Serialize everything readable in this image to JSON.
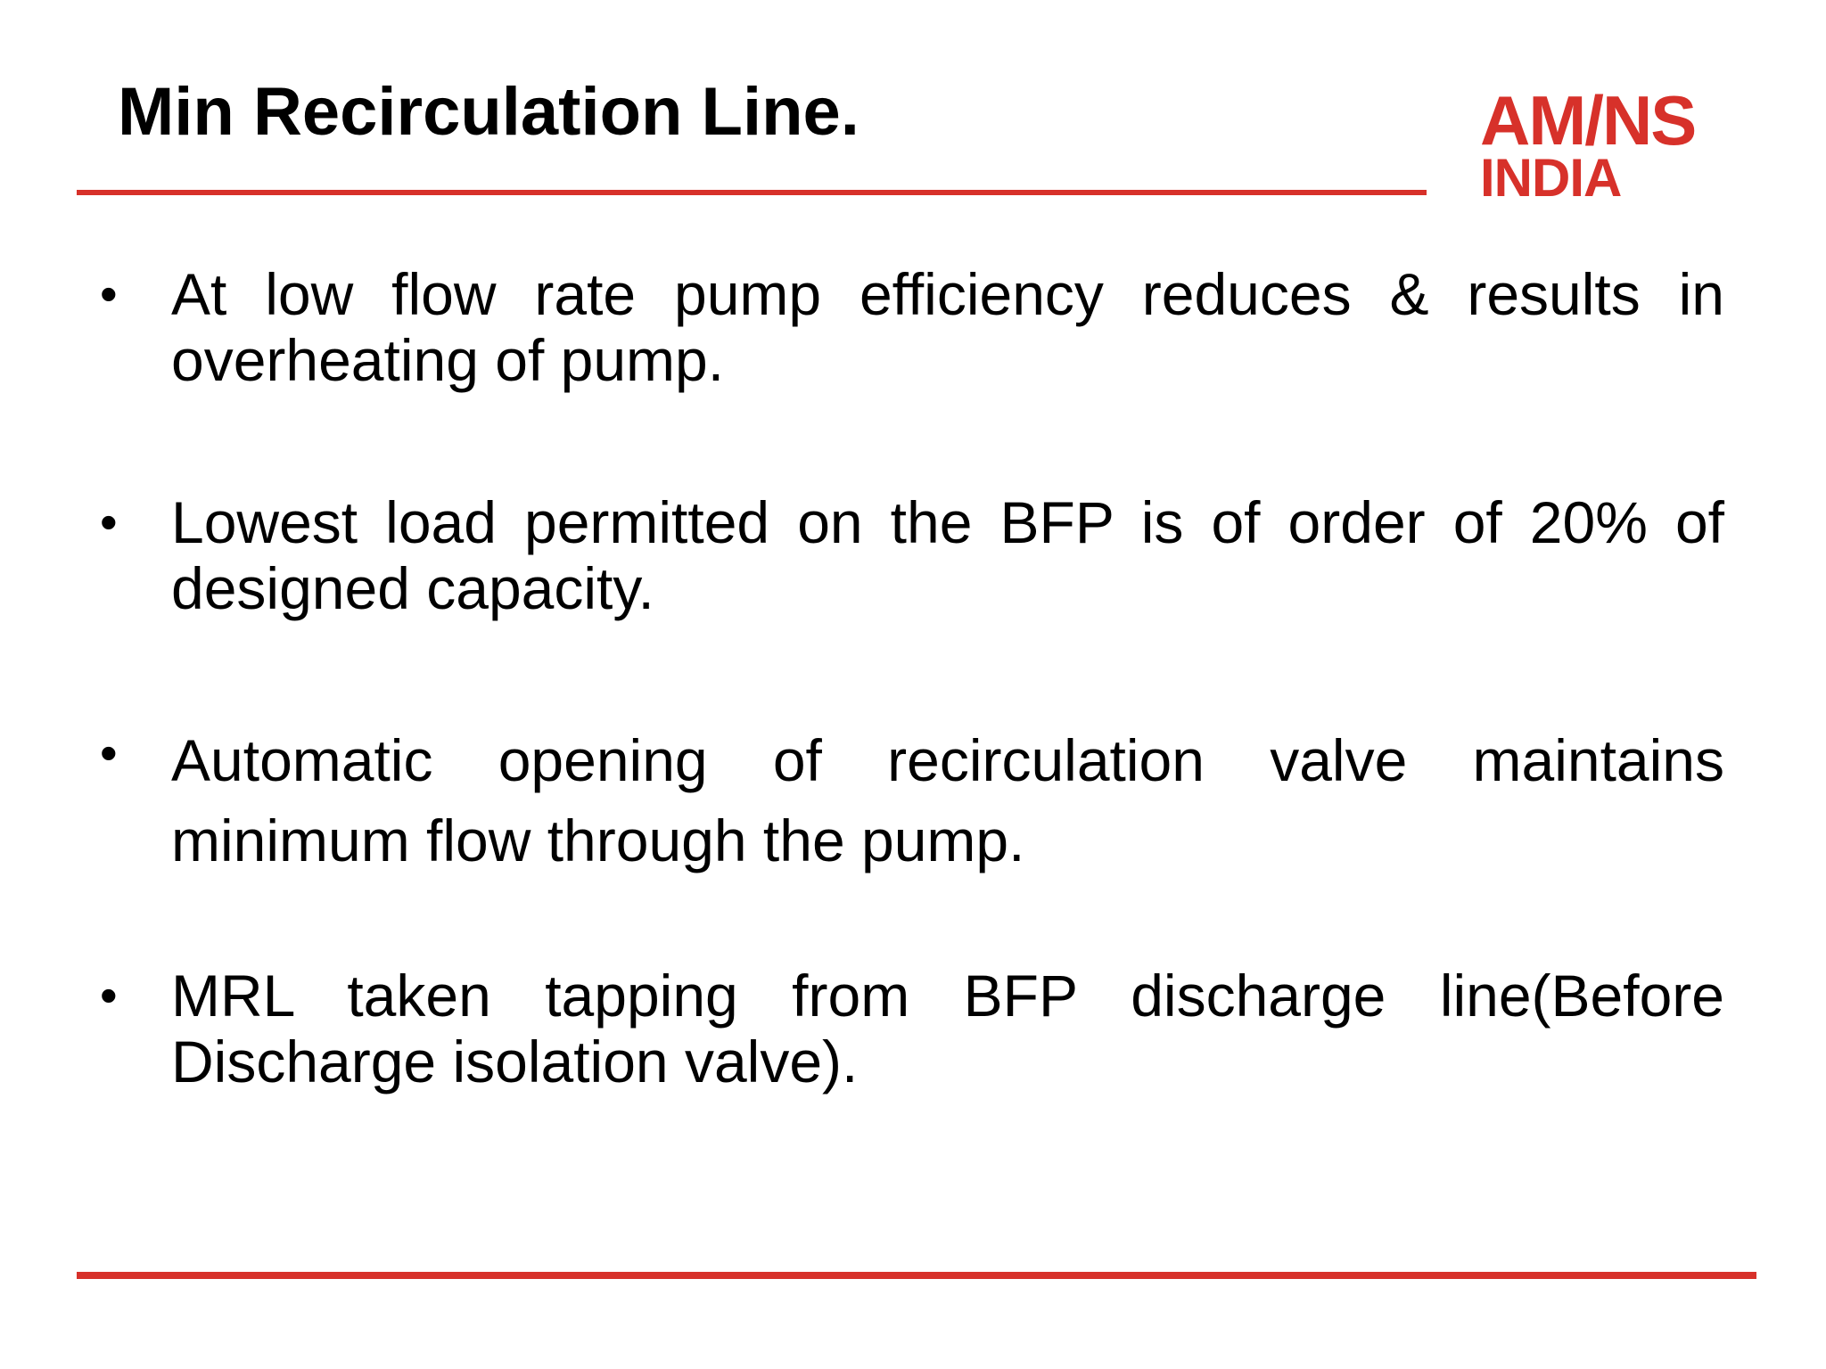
{
  "slide": {
    "title": "Min Recirculation Line.",
    "logo": {
      "line1": "AM/NS",
      "line2": "INDIA"
    },
    "bullet_glyph": "•",
    "bullets": [
      "At low flow rate pump efficiency reduces & results in overheating of pump.",
      "Lowest load permitted on the BFP is of order of 20% of designed capacity.",
      "Automatic opening of recirculation valve maintains minimum flow through the pump.",
      "MRL taken tapping from BFP discharge line(Before Discharge isolation valve)."
    ]
  },
  "colors": {
    "accent": "#d7312a",
    "text": "#000000",
    "background": "#ffffff"
  }
}
